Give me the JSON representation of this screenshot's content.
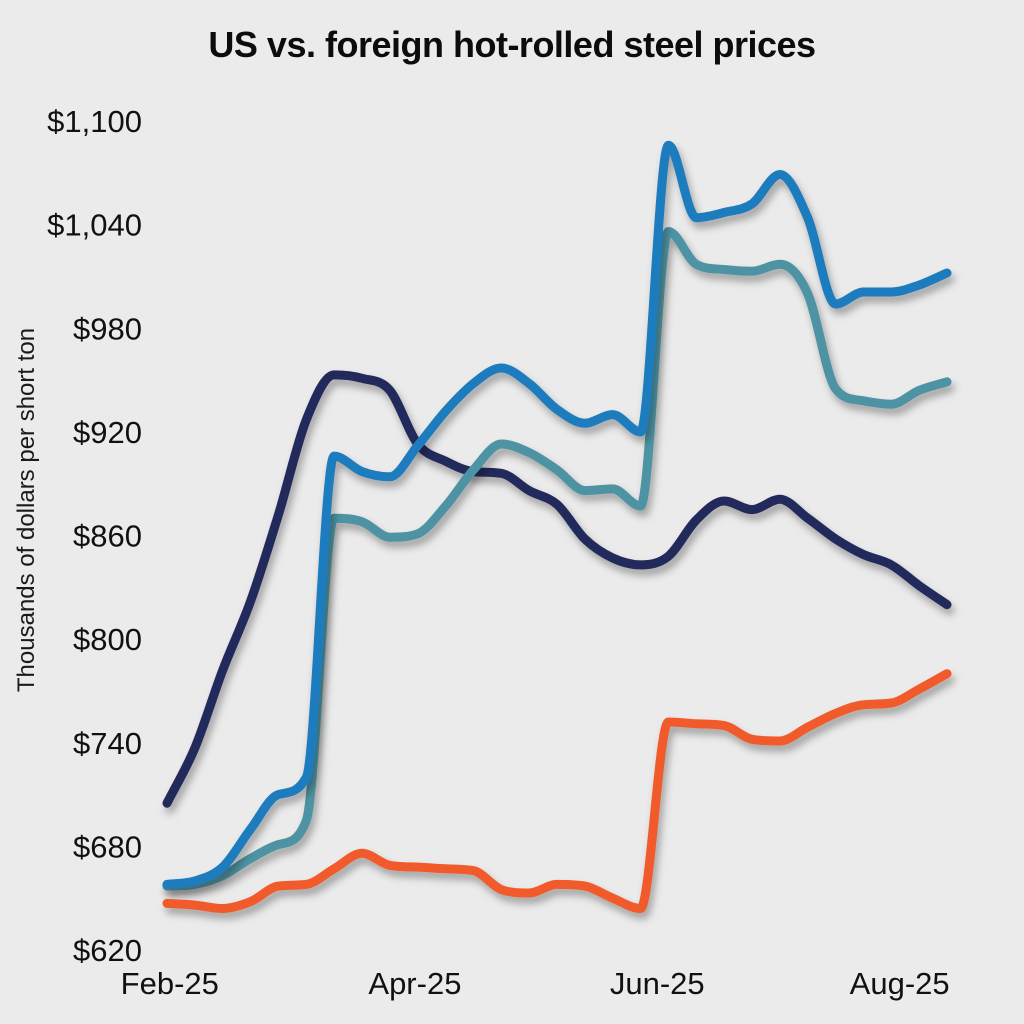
{
  "title": "US vs. foreign hot-rolled steel prices",
  "colors": {
    "background": "#ebebeb",
    "text": "#111111",
    "navy": "#222a5c",
    "blue": "#1e7bbd",
    "teal": "#4e93a3",
    "orange": "#f15a29"
  },
  "chart_data": {
    "type": "line",
    "title": "US vs. foreign hot-rolled steel prices",
    "xlabel": "",
    "ylabel": "Thousands of dollars per short ton",
    "ylim": [
      620,
      1100
    ],
    "x_unit": "weekly observations, Feb-25 through mid-Aug-25",
    "n_points": 29,
    "grid": false,
    "legend": "none",
    "y_ticks": [
      {
        "value": 620,
        "label": "$620"
      },
      {
        "value": 680,
        "label": "$680"
      },
      {
        "value": 740,
        "label": "$740"
      },
      {
        "value": 800,
        "label": "$800"
      },
      {
        "value": 860,
        "label": "$860"
      },
      {
        "value": 920,
        "label": "$920"
      },
      {
        "value": 980,
        "label": "$980"
      },
      {
        "value": 1040,
        "label": "$1,040"
      },
      {
        "value": 1100,
        "label": "$1,100"
      }
    ],
    "x_ticks": [
      {
        "label": "Feb-25",
        "week": 0.1
      },
      {
        "label": "Apr-25",
        "week": 8.9
      },
      {
        "label": "Jun-25",
        "week": 17.6
      },
      {
        "label": "Aug-25",
        "week": 26.3
      }
    ],
    "series": [
      {
        "name": "navy-line",
        "color": "#222a5c",
        "values": [
          705,
          737,
          782,
          822,
          872,
          927,
          953,
          951,
          944,
          913,
          903,
          897,
          896,
          886,
          878,
          858,
          847,
          843,
          848,
          869,
          880,
          875,
          881,
          870,
          858,
          849,
          843,
          831,
          820
        ]
      },
      {
        "name": "teal-line",
        "color": "#4e93a3",
        "values": [
          657,
          658,
          663,
          673,
          681,
          695,
          870,
          868,
          859,
          861,
          877,
          898,
          913,
          908,
          898,
          886,
          887,
          877,
          1036,
          1017,
          1014,
          1013,
          1017,
          1000,
          945,
          938,
          936,
          944,
          949
        ]
      },
      {
        "name": "blue-line",
        "color": "#1e7bbd",
        "values": [
          658,
          660,
          668,
          690,
          710,
          720,
          906,
          897,
          894,
          912,
          932,
          948,
          957,
          948,
          933,
          925,
          930,
          920,
          1086,
          1044,
          1047,
          1052,
          1069,
          1044,
          994,
          1001,
          1001,
          1005,
          1012
        ]
      },
      {
        "name": "orange-line",
        "color": "#f15a29",
        "values": [
          647,
          646,
          644,
          648,
          657,
          658,
          667,
          676,
          669,
          668,
          667,
          666,
          655,
          653,
          658,
          657,
          650,
          644,
          752,
          751,
          750,
          742,
          741,
          749,
          757,
          762,
          763,
          771,
          780
        ]
      }
    ]
  }
}
